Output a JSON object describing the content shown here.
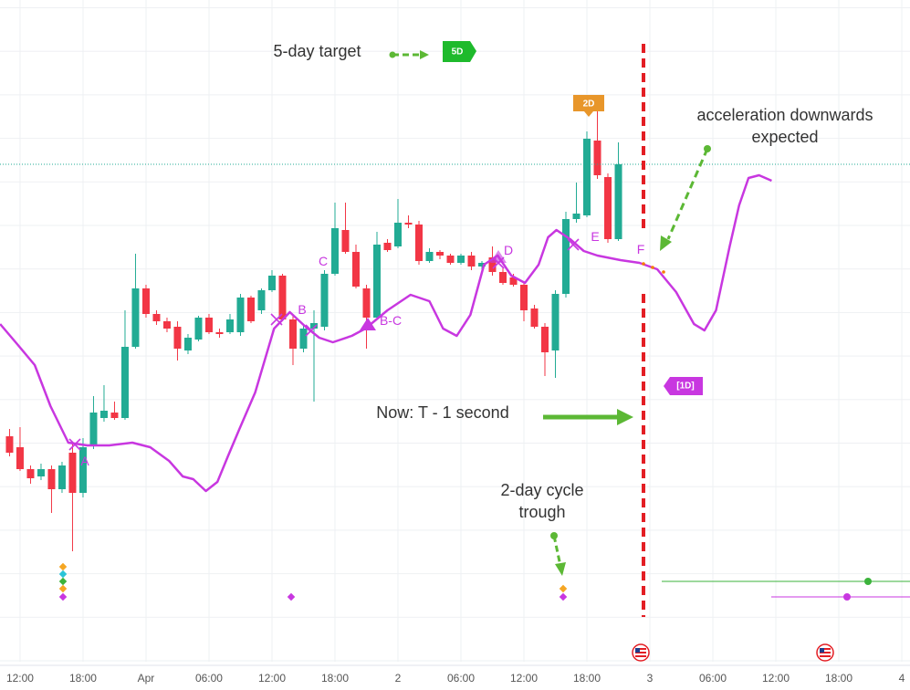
{
  "chart_data": {
    "type": "candlestick",
    "x": [
      -1,
      0,
      1,
      2,
      3,
      4,
      5,
      6,
      7,
      8,
      9,
      10,
      11,
      12,
      13,
      14,
      15,
      16,
      17,
      18,
      19,
      20,
      21,
      22,
      23,
      24,
      25,
      26,
      27,
      28,
      29,
      30,
      31,
      32,
      33,
      34,
      35,
      36,
      37,
      38,
      39,
      40,
      41,
      42,
      43,
      44,
      45,
      46,
      47,
      48,
      49,
      50,
      51,
      52,
      53,
      54,
      55,
      56,
      57
    ],
    "open": [
      247,
      235,
      211,
      203,
      211,
      189,
      229,
      185,
      237,
      267,
      273,
      267,
      345,
      409,
      381,
      373,
      367,
      341,
      353,
      377,
      361,
      361,
      361,
      399,
      385,
      407,
      423,
      375,
      343,
      365,
      367,
      425,
      473,
      449,
      409,
      377,
      459,
      455,
      481,
      479,
      439,
      449,
      445,
      437,
      445,
      433,
      443,
      427,
      421,
      413,
      387,
      367,
      341,
      403,
      485,
      489,
      571,
      531,
      463
    ],
    "high": [
      255,
      257,
      215,
      217,
      215,
      219,
      239,
      245,
      291,
      303,
      285,
      385,
      447,
      413,
      385,
      377,
      373,
      359,
      379,
      381,
      365,
      381,
      403,
      401,
      409,
      429,
      425,
      379,
      369,
      385,
      429,
      503,
      503,
      457,
      413,
      471,
      463,
      507,
      489,
      483,
      453,
      451,
      447,
      447,
      449,
      439,
      455,
      431,
      425,
      417,
      391,
      371,
      407,
      493,
      525,
      581,
      609,
      535,
      569
    ],
    "low": [
      225,
      209,
      195,
      199,
      163,
      185,
      121,
      180,
      233,
      263,
      265,
      265,
      343,
      377,
      369,
      361,
      330,
      337,
      351,
      359,
      355,
      359,
      357,
      371,
      381,
      405,
      373,
      325,
      339,
      285,
      363,
      423,
      447,
      409,
      343,
      375,
      449,
      453,
      475,
      435,
      437,
      441,
      435,
      435,
      429,
      429,
      423,
      413,
      411,
      373,
      365,
      313,
      311,
      399,
      481,
      487,
      529,
      459,
      461
    ],
    "close": [
      229,
      211,
      201,
      211,
      189,
      215,
      185,
      235,
      273,
      275,
      267,
      345,
      409,
      381,
      373,
      365,
      343,
      355,
      377,
      361,
      359,
      375,
      399,
      373,
      407,
      423,
      375,
      343,
      365,
      371,
      425,
      475,
      449,
      411,
      377,
      457,
      451,
      481,
      479,
      439,
      449,
      445,
      437,
      445,
      433,
      437,
      427,
      415,
      413,
      385,
      367,
      339,
      403,
      485,
      491,
      573,
      533,
      463,
      545
    ],
    "up_color": "#22ab94",
    "down_color": "#f23645",
    "xlim": [
      -1.91,
      84.78
    ],
    "ylim": [
      0,
      725
    ],
    "xticks": [
      {
        "value": 0,
        "label": "12:00"
      },
      {
        "value": 6,
        "label": "18:00"
      },
      {
        "value": 12,
        "label": "Apr"
      },
      {
        "value": 18,
        "label": "06:00"
      },
      {
        "value": 24,
        "label": "12:00"
      },
      {
        "value": 30,
        "label": "18:00"
      },
      {
        "value": 36,
        "label": "2"
      },
      {
        "value": 42,
        "label": "06:00"
      },
      {
        "value": 48,
        "label": "12:00"
      },
      {
        "value": 54,
        "label": "18:00"
      },
      {
        "value": 60,
        "label": "3"
      },
      {
        "value": 66,
        "label": "06:00"
      },
      {
        "value": 72,
        "label": "12:00"
      },
      {
        "value": 78,
        "label": "18:00"
      },
      {
        "value": 84,
        "label": "4"
      }
    ],
    "grid": true,
    "line": {
      "color": "#c837e0",
      "x": [
        -1.9,
        -0.2,
        1.4,
        2.9,
        4.6,
        6.4,
        8.5,
        10.7,
        12.4,
        14.2,
        15.5,
        16.5,
        17.7,
        18.8,
        19.8,
        20.9,
        22.4,
        24.2,
        25.7,
        27.2,
        28.5,
        29.8,
        31.6,
        32.9,
        35.0,
        37.2,
        39.0,
        40.3,
        41.6,
        42.9,
        44.2,
        45.5,
        46.8,
        48.1,
        49.4,
        50.3,
        51.1,
        52.4,
        53.7,
        55.0,
        57.2,
        59.0,
        60.7,
        62.5,
        64.2,
        65.2,
        66.3,
        67.6,
        68.5,
        69.4,
        70.4,
        71.6
      ],
      "values": [
        370,
        347,
        325,
        280,
        240,
        237,
        237,
        240,
        235,
        220,
        203,
        200,
        187,
        197,
        225,
        255,
        295,
        365,
        383,
        367,
        355,
        350,
        357,
        365,
        385,
        402,
        395,
        365,
        357,
        380,
        435,
        445,
        423,
        415,
        435,
        465,
        473,
        463,
        450,
        445,
        440,
        437,
        430,
        405,
        370,
        363,
        385,
        455,
        500,
        530,
        533,
        527
      ]
    },
    "annotations": [
      "5-day target",
      "acceleration downwards\nexpected",
      "Now: T - 1 second",
      "2-day cycle\ntrough"
    ],
    "wave_labels": [
      "A",
      "B",
      "C",
      "B-C",
      "D",
      "E",
      "F"
    ],
    "badges": [
      "5D",
      "2D",
      "[1D]"
    ]
  }
}
